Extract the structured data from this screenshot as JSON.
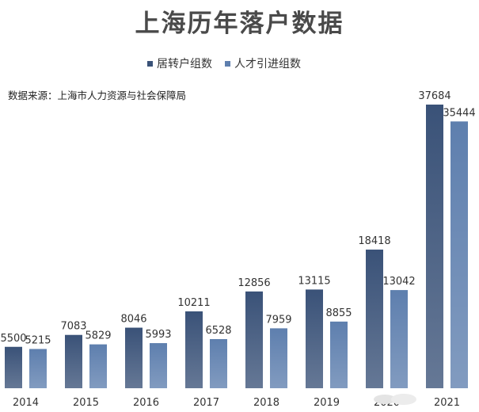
{
  "chart_data": {
    "type": "bar",
    "title": "上海历年落户数据",
    "subtitle": "数据来源：上海市人力资源与社会保障局",
    "categories": [
      "2014",
      "2015",
      "2016",
      "2017",
      "2018",
      "2019",
      "2020",
      "2021"
    ],
    "series": [
      {
        "name": "居转户组数",
        "color": "#3a5278",
        "values": [
          5500,
          7083,
          8046,
          10211,
          12856,
          13115,
          18418,
          37684
        ]
      },
      {
        "name": "人才引进组数",
        "color": "#5e7fae",
        "values": [
          5215,
          5829,
          5993,
          6528,
          7959,
          8855,
          13042,
          35444
        ]
      }
    ],
    "ylim": [
      0,
      40000
    ],
    "grid": false,
    "legend_position": "top",
    "xlabel": "",
    "ylabel": ""
  }
}
